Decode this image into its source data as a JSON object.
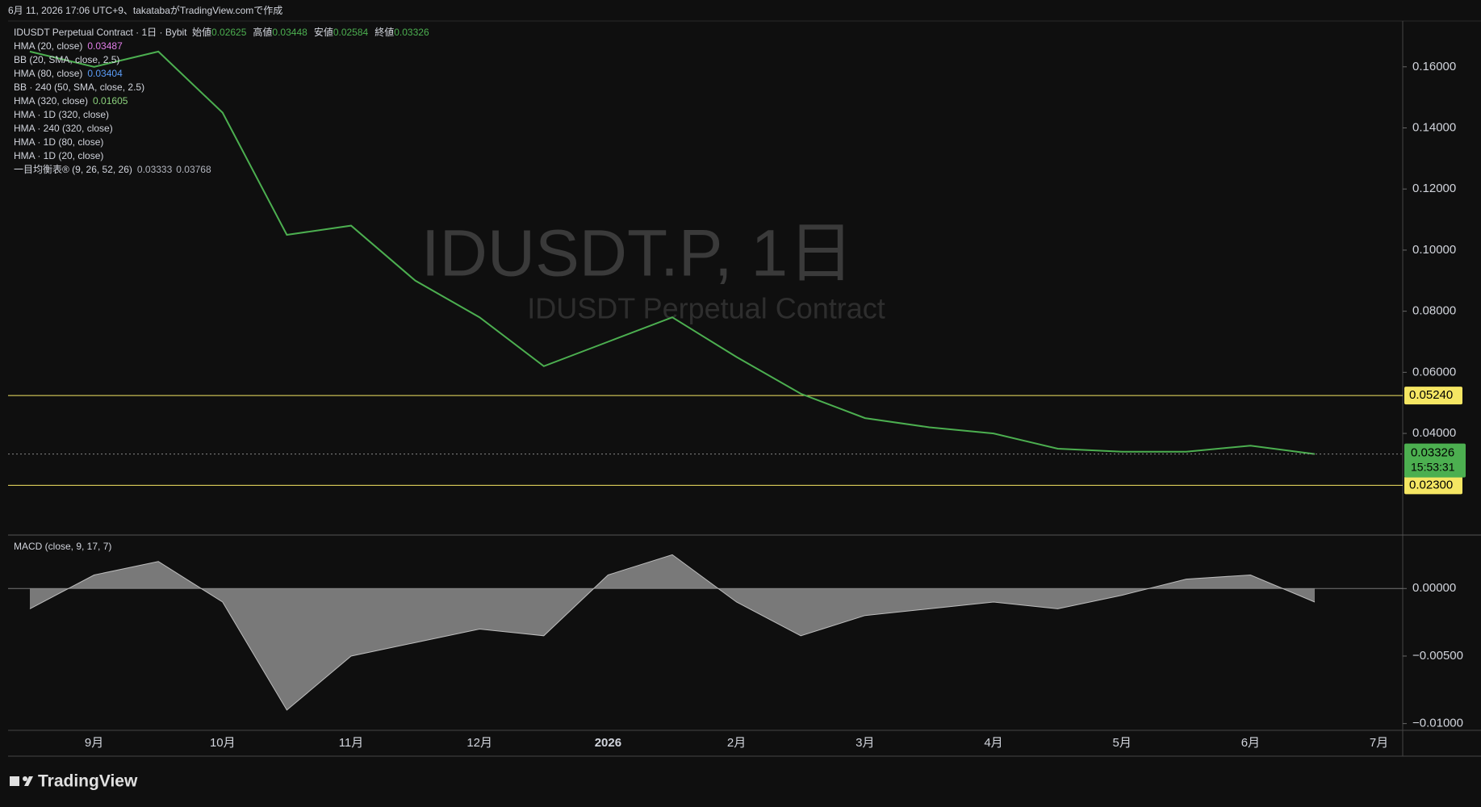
{
  "header": {
    "created": "6月 11, 2026 17:06 UTC+9、takatabaがTradingView.comで作成"
  },
  "chart_data": [
    {
      "type": "line",
      "title": "IDUSDT.P, 1日",
      "subtitle": "IDUSDT Perpetual Contract",
      "symbol": "IDUSDT Perpetual Contract · 1日 · Bybit",
      "ohlc": [
        {
          "name": "始値",
          "value": 0.02625
        },
        {
          "name": "高値",
          "value": 0.03448
        },
        {
          "name": "安値",
          "value": 0.02584
        },
        {
          "name": "終値",
          "value": 0.03326
        }
      ],
      "indicators": [
        {
          "name": "HMA (20, close)",
          "values": [
            0.03487
          ],
          "color": "#e17de8"
        },
        {
          "name": "BB (20, SMA, close, 2.5)"
        },
        {
          "name": "HMA (80, close)",
          "values": [
            0.03404
          ],
          "color": "#5b9cf6"
        },
        {
          "name": "BB · 240 (50, SMA, close, 2.5)"
        },
        {
          "name": "HMA (320, close)",
          "values": [
            0.01605
          ],
          "color": "#8bd17c"
        },
        {
          "name": "HMA · 1D (320, close)"
        },
        {
          "name": "HMA · 240 (320, close)"
        },
        {
          "name": "HMA · 1D (80, close)"
        },
        {
          "name": "HMA · 1D (20, close)"
        },
        {
          "name": "一目均衡表® (9, 26, 52, 26)",
          "values": [
            0.03333,
            0.03768
          ],
          "color": "#b2b5be"
        }
      ],
      "categories": [
        null,
        "9月",
        null,
        "10月",
        null,
        "11月",
        null,
        "12月",
        null,
        "2026",
        null,
        "2月",
        null,
        "3月",
        null,
        "4月",
        null,
        "5月",
        null,
        "6月",
        null,
        "7月"
      ],
      "series": [
        {
          "color": "#4caf50",
          "values": [
            0.165,
            0.16,
            0.165,
            0.145,
            0.105,
            0.108,
            0.09,
            0.078,
            0.062,
            0.07,
            0.078,
            0.065,
            0.053,
            0.045,
            0.042,
            0.04,
            0.035,
            0.034,
            0.034,
            0.036,
            0.03326,
            null
          ]
        }
      ],
      "ylim": [
        0.007,
        0.175
      ],
      "yticks": [
        {
          "value": 0.04,
          "label": "0.04000"
        },
        {
          "value": 0.06,
          "label": "0.06000"
        },
        {
          "value": 0.08,
          "label": "0.08000"
        },
        {
          "value": 0.1,
          "label": "0.10000"
        },
        {
          "value": 0.12,
          "label": "0.12000"
        },
        {
          "value": 0.14,
          "label": "0.14000"
        },
        {
          "value": 0.16,
          "label": "0.16000"
        }
      ],
      "hlines": [
        {
          "value": 0.0524,
          "label": "0.05240",
          "color": "#f5e663"
        },
        {
          "value": 0.023,
          "label": "0.02300",
          "color": "#f5e663"
        }
      ],
      "last_price": {
        "value": 0.03326,
        "label": "0.03326",
        "countdown": "15:53:31",
        "color": "#4caf50"
      }
    },
    {
      "type": "area",
      "title": "MACD (close, 9, 17, 7)",
      "color": "#9e9e9e",
      "values": [
        -0.0015,
        0.001,
        0.002,
        -0.001,
        -0.009,
        -0.005,
        -0.004,
        -0.003,
        -0.0035,
        0.001,
        0.0025,
        -0.001,
        -0.0035,
        -0.002,
        -0.0015,
        -0.001,
        -0.0015,
        -0.0005,
        0.0007,
        0.001,
        -0.001,
        null
      ],
      "ylim": [
        -0.0105,
        0.0039
      ],
      "yticks": [
        {
          "value": 0,
          "label": "0.00000"
        },
        {
          "value": -0.005,
          "label": "−0.00500"
        },
        {
          "value": -0.01,
          "label": "−0.01000"
        }
      ]
    }
  ],
  "footer": {
    "brand": "TradingView"
  }
}
